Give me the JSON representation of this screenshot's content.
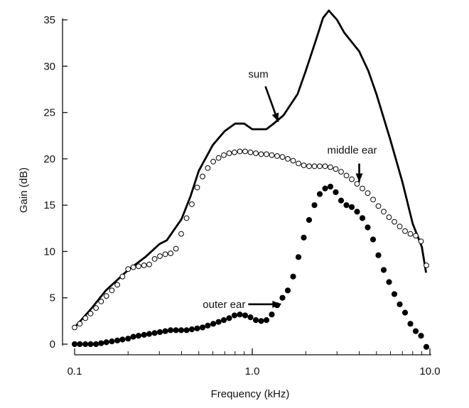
{
  "chart_data": {
    "type": "scatter",
    "title": "",
    "xlabel": "Frequency (kHz)",
    "ylabel": "Gain (dB)",
    "xscale": "log",
    "xlim": [
      0.1,
      10.0
    ],
    "ylim": [
      0,
      35
    ],
    "grid": false,
    "legend": "none",
    "x_ticks": [
      0.1,
      1.0,
      10.0
    ],
    "x_tick_labels": [
      "0.1",
      "1.0",
      "10.0"
    ],
    "y_ticks": [
      0,
      5,
      10,
      15,
      20,
      25,
      30,
      35
    ],
    "y_tick_labels": [
      "0",
      "5",
      "10",
      "15",
      "20",
      "25",
      "30",
      "35"
    ],
    "series": [
      {
        "label": "sum",
        "style": "solid-line",
        "color": "#000000",
        "points": [
          [
            0.1,
            1.8
          ],
          [
            0.125,
            3.9
          ],
          [
            0.15,
            5.8
          ],
          [
            0.2,
            8.0
          ],
          [
            0.25,
            9.4
          ],
          [
            0.3,
            10.8
          ],
          [
            0.33,
            11.2
          ],
          [
            0.4,
            13.5
          ],
          [
            0.45,
            16.0
          ],
          [
            0.5,
            18.7
          ],
          [
            0.6,
            21.5
          ],
          [
            0.7,
            23.0
          ],
          [
            0.8,
            23.8
          ],
          [
            0.9,
            23.8
          ],
          [
            1.0,
            23.2
          ],
          [
            1.2,
            23.2
          ],
          [
            1.3,
            23.7
          ],
          [
            1.5,
            24.7
          ],
          [
            1.8,
            27.0
          ],
          [
            2.0,
            29.5
          ],
          [
            2.3,
            33.0
          ],
          [
            2.5,
            35.2
          ],
          [
            2.7,
            36.0
          ],
          [
            3.0,
            35.0
          ],
          [
            3.3,
            33.6
          ],
          [
            4.0,
            31.6
          ],
          [
            4.5,
            29.5
          ],
          [
            5.0,
            27.0
          ],
          [
            6.0,
            22.0
          ],
          [
            7.0,
            17.5
          ],
          [
            8.0,
            13.0
          ],
          [
            9.0,
            10.5
          ],
          [
            9.5,
            7.8
          ]
        ]
      },
      {
        "label": "middle ear",
        "style": "open-circles",
        "color": "#000000",
        "points": [
          [
            0.1,
            1.8
          ],
          [
            0.107,
            2.2
          ],
          [
            0.115,
            2.8
          ],
          [
            0.123,
            3.3
          ],
          [
            0.132,
            3.9
          ],
          [
            0.141,
            4.6
          ],
          [
            0.151,
            5.2
          ],
          [
            0.162,
            5.8
          ],
          [
            0.174,
            6.4
          ],
          [
            0.186,
            7.3
          ],
          [
            0.2,
            8.1
          ],
          [
            0.214,
            8.3
          ],
          [
            0.229,
            8.4
          ],
          [
            0.246,
            8.5
          ],
          [
            0.263,
            8.6
          ],
          [
            0.282,
            9.2
          ],
          [
            0.302,
            9.5
          ],
          [
            0.324,
            9.7
          ],
          [
            0.347,
            9.8
          ],
          [
            0.372,
            10.3
          ],
          [
            0.398,
            11.9
          ],
          [
            0.427,
            13.6
          ],
          [
            0.457,
            15.1
          ],
          [
            0.49,
            16.9
          ],
          [
            0.525,
            18.1
          ],
          [
            0.562,
            19.0
          ],
          [
            0.603,
            19.7
          ],
          [
            0.646,
            20.1
          ],
          [
            0.692,
            20.4
          ],
          [
            0.741,
            20.6
          ],
          [
            0.794,
            20.7
          ],
          [
            0.851,
            20.8
          ],
          [
            0.912,
            20.8
          ],
          [
            0.977,
            20.7
          ],
          [
            1.047,
            20.6
          ],
          [
            1.122,
            20.5
          ],
          [
            1.202,
            20.5
          ],
          [
            1.288,
            20.4
          ],
          [
            1.38,
            20.3
          ],
          [
            1.479,
            20.2
          ],
          [
            1.585,
            20.0
          ],
          [
            1.698,
            19.8
          ],
          [
            1.82,
            19.5
          ],
          [
            1.95,
            19.3
          ],
          [
            2.089,
            19.2
          ],
          [
            2.239,
            19.2
          ],
          [
            2.399,
            19.2
          ],
          [
            2.57,
            19.2
          ],
          [
            2.754,
            19.1
          ],
          [
            2.951,
            18.9
          ],
          [
            3.162,
            18.6
          ],
          [
            3.388,
            18.2
          ],
          [
            3.631,
            17.8
          ],
          [
            3.89,
            17.3
          ],
          [
            4.169,
            16.8
          ],
          [
            4.467,
            16.3
          ],
          [
            4.786,
            15.6
          ],
          [
            5.129,
            14.9
          ],
          [
            5.495,
            14.3
          ],
          [
            5.888,
            13.7
          ],
          [
            6.31,
            13.2
          ],
          [
            6.761,
            12.7
          ],
          [
            7.244,
            12.2
          ],
          [
            7.762,
            11.9
          ],
          [
            8.318,
            11.7
          ],
          [
            8.913,
            11.1
          ],
          [
            9.55,
            8.5
          ]
        ]
      },
      {
        "label": "outer ear",
        "style": "filled-circles",
        "color": "#000000",
        "points": [
          [
            0.1,
            0.0
          ],
          [
            0.107,
            0.0
          ],
          [
            0.115,
            0.0
          ],
          [
            0.123,
            0.0
          ],
          [
            0.132,
            0.0
          ],
          [
            0.141,
            0.1
          ],
          [
            0.151,
            0.2
          ],
          [
            0.162,
            0.3
          ],
          [
            0.174,
            0.4
          ],
          [
            0.186,
            0.5
          ],
          [
            0.2,
            0.6
          ],
          [
            0.214,
            0.8
          ],
          [
            0.229,
            0.9
          ],
          [
            0.246,
            1.0
          ],
          [
            0.263,
            1.1
          ],
          [
            0.282,
            1.2
          ],
          [
            0.302,
            1.3
          ],
          [
            0.324,
            1.4
          ],
          [
            0.347,
            1.5
          ],
          [
            0.372,
            1.5
          ],
          [
            0.398,
            1.5
          ],
          [
            0.427,
            1.5
          ],
          [
            0.457,
            1.6
          ],
          [
            0.49,
            1.7
          ],
          [
            0.525,
            1.8
          ],
          [
            0.562,
            2.0
          ],
          [
            0.603,
            2.2
          ],
          [
            0.646,
            2.4
          ],
          [
            0.692,
            2.6
          ],
          [
            0.741,
            2.8
          ],
          [
            0.794,
            3.1
          ],
          [
            0.851,
            3.2
          ],
          [
            0.912,
            3.1
          ],
          [
            0.977,
            2.9
          ],
          [
            1.047,
            2.6
          ],
          [
            1.122,
            2.5
          ],
          [
            1.202,
            2.6
          ],
          [
            1.288,
            3.2
          ],
          [
            1.38,
            4.2
          ],
          [
            1.479,
            5.0
          ],
          [
            1.585,
            5.8
          ],
          [
            1.698,
            7.3
          ],
          [
            1.82,
            9.4
          ],
          [
            1.95,
            11.5
          ],
          [
            2.089,
            13.4
          ],
          [
            2.239,
            15.0
          ],
          [
            2.399,
            16.2
          ],
          [
            2.57,
            16.8
          ],
          [
            2.754,
            17.0
          ],
          [
            2.951,
            16.4
          ],
          [
            3.162,
            15.5
          ],
          [
            3.388,
            15.0
          ],
          [
            3.631,
            14.8
          ],
          [
            3.89,
            14.3
          ],
          [
            4.169,
            13.6
          ],
          [
            4.467,
            12.6
          ],
          [
            4.786,
            11.3
          ],
          [
            5.129,
            9.6
          ],
          [
            5.495,
            8.0
          ],
          [
            5.888,
            6.7
          ],
          [
            6.31,
            5.4
          ],
          [
            6.761,
            4.3
          ],
          [
            7.244,
            3.4
          ],
          [
            7.762,
            2.2
          ],
          [
            8.318,
            1.4
          ],
          [
            8.913,
            0.9
          ],
          [
            9.55,
            -0.3
          ]
        ]
      }
    ],
    "annotations": [
      {
        "text": "sum",
        "series": "sum",
        "arrow_direction": "down-right",
        "arrow_target": [
          1.4,
          24.0
        ]
      },
      {
        "text": "middle ear",
        "series": "middle ear",
        "arrow_direction": "down",
        "arrow_target": [
          4.0,
          17.5
        ]
      },
      {
        "text": "outer ear",
        "series": "outer ear",
        "arrow_direction": "right",
        "arrow_target": [
          1.45,
          4.3
        ]
      }
    ]
  }
}
